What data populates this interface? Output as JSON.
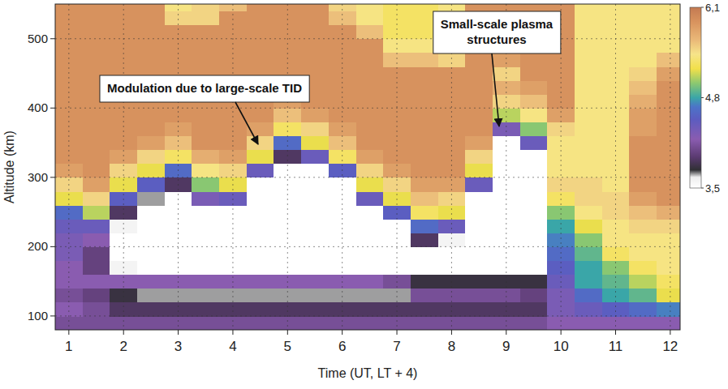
{
  "chart_data": {
    "type": "heatmap",
    "xlabel": "Time (UT, LT + 4)",
    "ylabel": "Altitude (km)",
    "annotations": [
      "Modulation due to large-scale TID",
      "Small-scale plasma structures"
    ],
    "x": [
      1,
      1.5,
      2,
      2.5,
      3,
      3.5,
      4,
      4.5,
      5,
      5.5,
      6,
      6.5,
      7,
      7.5,
      8,
      8.5,
      9,
      9.5,
      10,
      10.5,
      11,
      11.5,
      12
    ],
    "y": [
      90,
      110,
      130,
      150,
      170,
      190,
      210,
      230,
      250,
      270,
      290,
      310,
      330,
      350,
      370,
      390,
      410,
      430,
      450,
      470,
      490,
      510,
      530,
      550
    ],
    "z": [
      [
        4.1,
        4.2,
        4.1,
        4.2,
        4.2,
        4.3,
        4.3,
        4.4,
        4.6,
        5.2,
        5.5,
        5.8,
        5.9,
        5.9,
        5.9,
        5.9,
        5.9,
        5.9,
        5.9,
        5.9,
        5.9,
        5.9,
        5.9,
        5.9
      ],
      [
        4.1,
        4.1,
        4.0,
        4.2,
        4.0,
        4.0,
        4.2,
        4.4,
        5.1,
        5.5,
        5.8,
        5.9,
        5.9,
        5.9,
        5.9,
        5.9,
        5.9,
        5.9,
        5.9,
        5.9,
        5.9,
        5.9,
        5.9,
        5.9
      ],
      [
        4.1,
        3.9,
        3.8,
        4.2,
        3.6,
        3.5,
        3.5,
        3.6,
        3.9,
        4.5,
        5.2,
        5.5,
        5.8,
        5.9,
        5.9,
        5.9,
        5.9,
        5.9,
        5.9,
        5.9,
        5.9,
        5.9,
        5.9,
        5.9
      ],
      [
        4.1,
        3.9,
        3.7,
        4.2,
        3.5,
        3.5,
        3.5,
        3.5,
        3.5,
        3.7,
        4.5,
        5.2,
        5.5,
        5.8,
        5.9,
        5.9,
        5.9,
        5.9,
        5.9,
        5.9,
        5.9,
        5.9,
        5.9,
        5.9
      ],
      [
        4.1,
        3.9,
        3.7,
        4.2,
        3.5,
        3.5,
        3.5,
        3.5,
        3.5,
        3.5,
        3.9,
        4.6,
        5.3,
        5.6,
        5.8,
        5.9,
        5.9,
        5.9,
        5.9,
        5.9,
        5.9,
        5.9,
        5.5,
        5.4
      ],
      [
        4.1,
        3.9,
        3.7,
        4.2,
        3.5,
        3.5,
        3.5,
        3.5,
        3.5,
        4.3,
        5.0,
        5.4,
        5.7,
        5.9,
        5.9,
        5.9,
        5.9,
        5.9,
        5.9,
        5.9,
        5.9,
        5.9,
        5.5,
        5.5
      ],
      [
        4.1,
        3.9,
        3.7,
        4.2,
        3.5,
        3.5,
        3.5,
        3.5,
        3.5,
        4.4,
        5.2,
        5.5,
        5.8,
        5.9,
        5.9,
        5.9,
        5.9,
        5.9,
        5.9,
        5.9,
        5.9,
        5.9,
        5.9,
        5.6
      ],
      [
        4.1,
        3.9,
        3.7,
        4.2,
        3.5,
        3.5,
        3.5,
        3.5,
        3.5,
        3.5,
        3.5,
        4.4,
        5.2,
        5.5,
        5.8,
        5.9,
        5.9,
        5.9,
        5.9,
        5.9,
        5.9,
        5.9,
        5.9,
        5.9
      ],
      [
        4.1,
        3.9,
        3.7,
        4.2,
        3.5,
        3.5,
        3.5,
        3.5,
        3.5,
        3.5,
        3.5,
        3.5,
        3.9,
        4.6,
        5.3,
        5.6,
        5.8,
        5.9,
        5.9,
        5.9,
        5.9,
        5.9,
        5.9,
        5.9
      ],
      [
        4.1,
        3.9,
        3.7,
        4.2,
        3.5,
        3.5,
        3.5,
        3.5,
        3.5,
        3.5,
        3.5,
        3.5,
        4.4,
        5.2,
        5.5,
        5.8,
        5.9,
        5.9,
        5.9,
        5.9,
        5.9,
        5.9,
        5.9,
        5.9
      ],
      [
        4.1,
        3.9,
        3.7,
        4.2,
        3.5,
        3.5,
        3.5,
        3.5,
        3.5,
        3.5,
        3.5,
        4.5,
        5.3,
        5.6,
        5.8,
        5.9,
        5.9,
        5.9,
        5.9,
        5.9,
        5.9,
        5.9,
        5.6,
        5.5
      ],
      [
        4.1,
        3.9,
        3.7,
        4.2,
        3.5,
        3.5,
        3.5,
        3.5,
        3.5,
        4.4,
        5.2,
        5.5,
        5.8,
        5.9,
        5.9,
        5.9,
        5.9,
        5.9,
        5.9,
        5.9,
        5.9,
        5.6,
        5.4,
        5.4
      ],
      [
        4.1,
        3.9,
        3.7,
        4.1,
        3.5,
        3.5,
        3.5,
        3.5,
        4.5,
        5.2,
        5.5,
        5.8,
        5.9,
        5.9,
        5.9,
        5.9,
        5.9,
        5.9,
        5.9,
        5.6,
        5.4,
        5.3,
        5.3,
        5.3
      ],
      [
        4.1,
        3.9,
        4.1,
        3.8,
        3.5,
        3.5,
        3.9,
        4.6,
        5.3,
        5.6,
        5.8,
        5.9,
        5.9,
        5.9,
        5.9,
        5.9,
        5.9,
        5.9,
        5.9,
        5.6,
        5.4,
        5.3,
        5.3,
        5.3
      ],
      [
        4.1,
        3.9,
        4.1,
        3.8,
        3.5,
        3.5,
        3.6,
        4.4,
        5.2,
        5.5,
        5.8,
        5.9,
        5.9,
        5.9,
        5.9,
        5.9,
        5.9,
        5.9,
        5.9,
        5.5,
        5.4,
        5.3,
        5.3,
        5.4
      ],
      [
        4.1,
        3.9,
        4.1,
        3.8,
        3.5,
        3.5,
        3.5,
        3.5,
        3.5,
        3.5,
        4.4,
        5.2,
        5.5,
        5.8,
        5.9,
        5.9,
        5.9,
        5.9,
        5.9,
        5.9,
        5.9,
        5.9,
        5.9,
        5.9
      ],
      [
        4.1,
        3.9,
        4.1,
        3.8,
        3.5,
        3.5,
        3.5,
        3.5,
        3.5,
        3.5,
        3.5,
        3.5,
        3.5,
        3.5,
        4.3,
        5.1,
        5.5,
        5.7,
        5.5,
        5.8,
        5.9,
        5.9,
        5.9,
        5.9
      ],
      [
        4.1,
        3.9,
        4.0,
        3.8,
        3.5,
        3.5,
        3.5,
        3.5,
        3.5,
        3.5,
        3.5,
        3.5,
        3.5,
        4.4,
        5.0,
        5.4,
        5.6,
        5.8,
        5.9,
        5.9,
        5.9,
        5.9,
        5.9,
        5.9
      ],
      [
        4.2,
        4.3,
        4.3,
        4.4,
        4.5,
        4.6,
        4.7,
        4.8,
        5.0,
        5.3,
        5.5,
        5.4,
        5.4,
        5.4,
        5.5,
        5.8,
        5.9,
        5.9,
        5.9,
        5.9,
        5.9,
        5.9,
        5.9,
        5.9
      ],
      [
        4.2,
        4.4,
        4.6,
        4.8,
        4.8,
        4.9,
        5.0,
        5.2,
        5.4,
        5.5,
        5.5,
        5.4,
        5.4,
        5.4,
        5.4,
        5.4,
        5.4,
        5.4,
        5.4,
        5.4,
        5.4,
        5.4,
        5.4,
        5.4
      ],
      [
        4.2,
        4.5,
        4.8,
        4.9,
        5.0,
        5.3,
        5.4,
        5.4,
        5.5,
        5.5,
        5.4,
        5.4,
        5.4,
        5.4,
        5.4,
        5.4,
        5.4,
        5.4,
        5.4,
        5.4,
        5.4,
        5.4,
        5.4,
        5.4
      ],
      [
        4.2,
        4.6,
        4.9,
        5.1,
        5.3,
        5.4,
        5.4,
        5.5,
        5.6,
        5.8,
        5.9,
        5.9,
        5.9,
        5.9,
        5.8,
        5.8,
        5.7,
        5.6,
        5.5,
        5.4,
        5.4,
        5.4,
        5.4,
        5.4
      ],
      [
        4.2,
        4.7,
        5.2,
        5.3,
        5.4,
        5.4,
        5.4,
        5.5,
        5.7,
        5.9,
        5.9,
        5.9,
        5.9,
        5.9,
        5.9,
        5.9,
        5.9,
        5.9,
        5.8,
        5.6,
        5.4,
        5.4,
        5.4,
        5.4
      ]
    ],
    "xlim": [
      0.75,
      12.18
    ],
    "ylim": [
      80,
      550
    ],
    "xticks": [
      1,
      2,
      3,
      4,
      5,
      6,
      7,
      8,
      9,
      10,
      11,
      12
    ],
    "yticks": [
      100,
      200,
      300,
      400,
      500
    ],
    "grid": true,
    "colorbar": {
      "range": [
        3.5,
        6.1
      ],
      "ticks": [
        {
          "value": 3.5,
          "label": "3,5"
        },
        {
          "value": 4.8,
          "label": "4,8"
        },
        {
          "value": 6.1,
          "label": "6,1"
        }
      ]
    }
  }
}
